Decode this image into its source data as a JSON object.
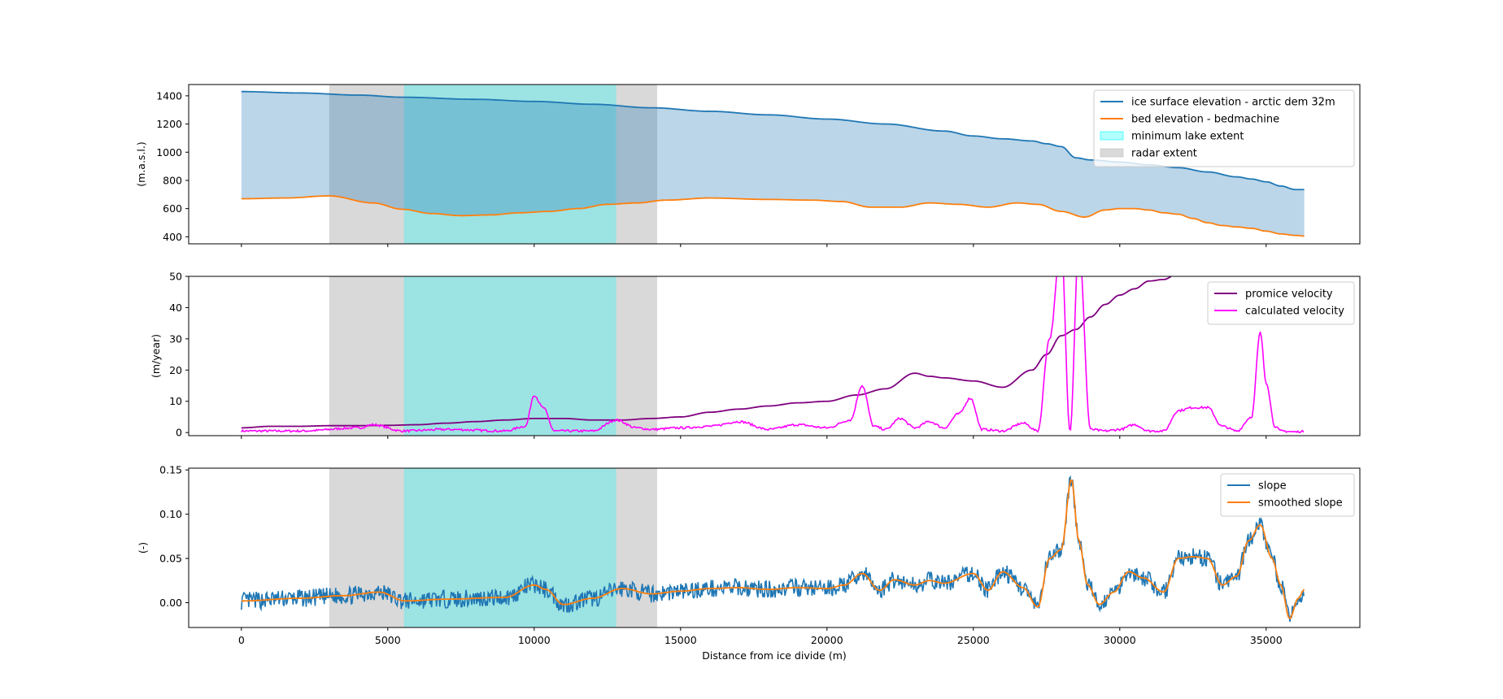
{
  "chart_data": [
    {
      "type": "area",
      "ylabel": "(m.a.s.l.)",
      "ylim": [
        350,
        1480
      ],
      "xlim": [
        -1800,
        38200
      ],
      "yticks": [
        400,
        600,
        800,
        1000,
        1200,
        1400
      ],
      "legend_loc": "upper right",
      "spans": [
        {
          "name": "radar extent",
          "x0": 3000,
          "x1": 14200,
          "color": "#bfbfbf"
        },
        {
          "name": "minimum lake extent",
          "x0": 5550,
          "x1": 12800,
          "color": "#00ffff"
        }
      ],
      "fill": {
        "color": "#1f77b4"
      },
      "series": [
        {
          "name": "ice surface elevation - arctic dem 32m",
          "color": "#1f77b4",
          "x": [
            0,
            2000,
            4000,
            5500,
            8000,
            10000,
            12000,
            14000,
            16000,
            18000,
            20000,
            22000,
            24000,
            25000,
            26000,
            27000,
            27500,
            28000,
            28500,
            29000,
            30000,
            31000,
            32000,
            33000,
            34000,
            34500,
            35000,
            35500,
            36000,
            36300
          ],
          "y": [
            1430,
            1420,
            1405,
            1390,
            1375,
            1360,
            1340,
            1315,
            1290,
            1265,
            1235,
            1200,
            1150,
            1115,
            1095,
            1080,
            1060,
            1040,
            960,
            945,
            930,
            910,
            890,
            860,
            825,
            810,
            790,
            760,
            735,
            735
          ]
        },
        {
          "name": "bed elevation - bedmachine",
          "color": "#ff7f0e",
          "x": [
            0,
            1500,
            3000,
            4500,
            5500,
            6500,
            7500,
            8500,
            9500,
            10500,
            11500,
            12500,
            13500,
            14500,
            16000,
            18000,
            19500,
            20500,
            21500,
            22500,
            23500,
            24500,
            25500,
            26500,
            27200,
            28000,
            28800,
            29500,
            30000,
            30500,
            31000,
            31500,
            32000,
            32500,
            33000,
            33500,
            34000,
            34500,
            35000,
            35500,
            36000,
            36300
          ],
          "y": [
            670,
            675,
            690,
            640,
            595,
            565,
            550,
            555,
            570,
            580,
            600,
            630,
            640,
            660,
            675,
            665,
            660,
            650,
            610,
            610,
            640,
            630,
            610,
            640,
            630,
            580,
            540,
            590,
            600,
            600,
            590,
            570,
            560,
            530,
            500,
            480,
            470,
            460,
            440,
            420,
            410,
            405
          ]
        }
      ]
    },
    {
      "type": "line",
      "ylabel": "(m/year)",
      "ylim": [
        -1,
        50
      ],
      "yticks": [
        0,
        10,
        20,
        30,
        40,
        50
      ],
      "legend_loc": "upper right",
      "series": [
        {
          "name": "promice velocity",
          "color": "#800080",
          "x": [
            0,
            1000,
            2000,
            3000,
            4000,
            5000,
            6000,
            7000,
            8000,
            9000,
            10000,
            11000,
            12000,
            13000,
            14000,
            15000,
            16000,
            17000,
            18000,
            19000,
            20000,
            21000,
            22000,
            23000,
            23500,
            24000,
            25000,
            26000,
            27000,
            27500,
            28000,
            28500,
            29000,
            29500,
            30000,
            30500,
            31000,
            31500,
            32000
          ],
          "y": [
            1.5,
            2,
            2,
            2.2,
            2.2,
            2.3,
            2.5,
            3,
            3.5,
            4,
            4.5,
            4.5,
            4,
            4,
            4.5,
            5,
            6.5,
            7.5,
            8.5,
            9.5,
            10,
            12,
            14,
            19,
            18,
            17.5,
            16.5,
            14.5,
            20,
            25,
            31,
            33,
            37,
            41,
            44,
            46,
            48.5,
            49,
            51
          ]
        },
        {
          "name": "calculated velocity",
          "color": "#ff00ff",
          "x": [
            0,
            2000,
            4000,
            4500,
            5500,
            7000,
            9000,
            9700,
            10000,
            10300,
            10700,
            12000,
            12800,
            13500,
            14000,
            15000,
            16000,
            17000,
            18000,
            19000,
            20000,
            20800,
            21200,
            21600,
            22000,
            22500,
            23000,
            23500,
            24000,
            24500,
            24900,
            25300,
            26000,
            26700,
            27200,
            27600,
            28000,
            28300,
            28600,
            29000,
            29500,
            30000,
            30500,
            31000,
            31500,
            32000,
            32500,
            33000,
            33500,
            34000,
            34500,
            34800,
            35000,
            35300,
            35500,
            36000,
            36300
          ],
          "y": [
            0.5,
            0.5,
            1.5,
            2.5,
            0.5,
            1,
            0.5,
            2,
            12,
            8,
            0.5,
            0.5,
            4,
            1.5,
            1,
            1.5,
            2,
            3.5,
            1,
            2.5,
            1.5,
            4,
            15,
            2,
            1,
            4.5,
            1.5,
            3.5,
            1.5,
            6,
            11,
            1,
            0.5,
            3,
            0.5,
            30,
            60,
            0.5,
            60,
            1,
            0.5,
            1,
            2.5,
            0.5,
            0.5,
            7,
            8,
            8,
            2,
            0.5,
            5,
            32,
            16,
            2,
            0.5,
            0.2,
            0.3
          ]
        }
      ]
    },
    {
      "type": "line",
      "ylabel": "(-)",
      "xlabel": "Distance from ice divide (m)",
      "ylim": [
        -0.028,
        0.152
      ],
      "yticks": [
        0.0,
        0.05,
        0.1,
        0.15
      ],
      "xticks": [
        0,
        5000,
        10000,
        15000,
        20000,
        25000,
        30000,
        35000
      ],
      "legend_loc": "upper right",
      "series": [
        {
          "name": "slope",
          "color": "#1f77b4"
        },
        {
          "name": "smoothed slope",
          "color": "#ff7f0e",
          "x": [
            0,
            2000,
            3500,
            4700,
            5600,
            7000,
            9000,
            10000,
            10400,
            11000,
            12000,
            13000,
            14000,
            15000,
            16000,
            17000,
            18000,
            19000,
            20000,
            20600,
            21200,
            21800,
            22300,
            23000,
            23500,
            24000,
            25000,
            25500,
            26000,
            26700,
            27200,
            27600,
            28000,
            28350,
            28600,
            28900,
            29300,
            29800,
            30300,
            30800,
            31500,
            32000,
            32500,
            33000,
            33500,
            34000,
            34400,
            34800,
            35200,
            35500,
            35800,
            36100,
            36300
          ],
          "y": [
            0.002,
            0.005,
            0.008,
            0.012,
            0.002,
            0.004,
            0.006,
            0.02,
            0.015,
            -0.002,
            0.005,
            0.016,
            0.01,
            0.013,
            0.016,
            0.017,
            0.015,
            0.017,
            0.016,
            0.02,
            0.033,
            0.014,
            0.026,
            0.02,
            0.025,
            0.022,
            0.033,
            0.014,
            0.035,
            0.017,
            -0.005,
            0.05,
            0.06,
            0.14,
            0.07,
            0.02,
            -0.002,
            0.012,
            0.035,
            0.028,
            0.012,
            0.05,
            0.052,
            0.05,
            0.02,
            0.03,
            0.07,
            0.088,
            0.05,
            0.02,
            -0.018,
            0.005,
            0.015
          ]
        }
      ]
    }
  ]
}
